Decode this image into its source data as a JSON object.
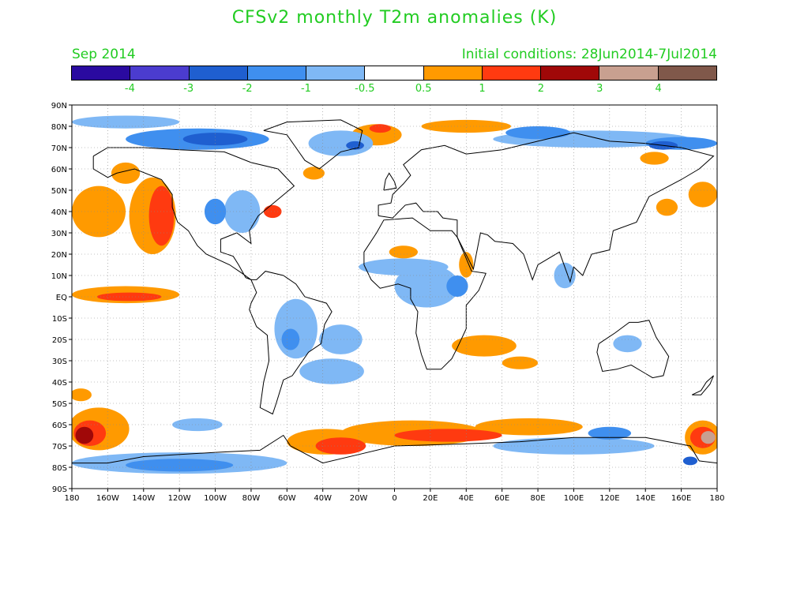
{
  "title": "CFSv2 monthly T2m anomalies (K)",
  "month_label": "Sep 2014",
  "initial_conditions": "Initial conditions: 28Jun2014-7Jul2014",
  "colorbar": {
    "colors": [
      "#2a0aa0",
      "#4b3ccf",
      "#1f5fd0",
      "#3f8fef",
      "#7fb8f5",
      "#ffffff",
      "#ff9a00",
      "#ff3a10",
      "#a00808",
      "#c8a090",
      "#80584a"
    ],
    "labels": [
      "-4",
      "-3",
      "-2",
      "-1",
      "-0.5",
      "0.5",
      "1",
      "2",
      "3",
      "4"
    ],
    "levels": [
      -4,
      -3,
      -2,
      -1,
      -0.5,
      0.5,
      1,
      2,
      3,
      4
    ]
  },
  "map": {
    "projection": "equirectangular",
    "lon_range": [
      -180,
      180
    ],
    "lat_range": [
      -90,
      90
    ],
    "grid": true,
    "lat_labels": [
      "90N",
      "80N",
      "70N",
      "60N",
      "50N",
      "40N",
      "30N",
      "20N",
      "10N",
      "EQ",
      "10S",
      "20S",
      "30S",
      "40S",
      "50S",
      "60S",
      "70S",
      "80S",
      "90S"
    ],
    "lon_labels": [
      "180",
      "160W",
      "140W",
      "120W",
      "100W",
      "80W",
      "60W",
      "40W",
      "20W",
      "0",
      "20E",
      "40E",
      "60E",
      "80E",
      "100E",
      "120E",
      "140E",
      "160E",
      "180"
    ],
    "anomaly_regions": [
      {
        "lon": -165,
        "lat": 40,
        "rlon": 15,
        "rlat": 12,
        "color": "#ff9a00"
      },
      {
        "lon": -135,
        "lat": 38,
        "rlon": 13,
        "rlat": 18,
        "color": "#ff9a00"
      },
      {
        "lon": -130,
        "lat": 38,
        "rlon": 7,
        "rlat": 14,
        "color": "#ff3a10"
      },
      {
        "lon": -150,
        "lat": 58,
        "rlon": 8,
        "rlat": 5,
        "color": "#ff9a00"
      },
      {
        "lon": -150,
        "lat": 1,
        "rlon": 30,
        "rlat": 4,
        "color": "#ff9a00"
      },
      {
        "lon": -148,
        "lat": 0,
        "rlon": 18,
        "rlat": 2,
        "color": "#ff3a10"
      },
      {
        "lon": -165,
        "lat": -62,
        "rlon": 17,
        "rlat": 10,
        "color": "#ff9a00"
      },
      {
        "lon": -170,
        "lat": -64,
        "rlon": 9,
        "rlat": 6,
        "color": "#ff3a10"
      },
      {
        "lon": -173,
        "lat": -65,
        "rlon": 5,
        "rlat": 4,
        "color": "#a00808"
      },
      {
        "lon": -175,
        "lat": -46,
        "rlon": 6,
        "rlat": 3,
        "color": "#ff9a00"
      },
      {
        "lon": -38,
        "lat": -68,
        "rlon": 22,
        "rlat": 6,
        "color": "#ff9a00"
      },
      {
        "lon": 10,
        "lat": -64,
        "rlon": 40,
        "rlat": 6,
        "color": "#ff9a00"
      },
      {
        "lon": 75,
        "lat": -61,
        "rlon": 30,
        "rlat": 4,
        "color": "#ff9a00"
      },
      {
        "lon": -30,
        "lat": -70,
        "rlon": 14,
        "rlat": 4,
        "color": "#ff3a10"
      },
      {
        "lon": 30,
        "lat": -65,
        "rlon": 30,
        "rlat": 3,
        "color": "#ff3a10"
      },
      {
        "lon": 172,
        "lat": -66,
        "rlon": 10,
        "rlat": 8,
        "color": "#ff9a00"
      },
      {
        "lon": 172,
        "lat": -66,
        "rlon": 7,
        "rlat": 5,
        "color": "#ff3a10"
      },
      {
        "lon": 175,
        "lat": -66,
        "rlon": 4,
        "rlat": 3,
        "color": "#c8a090"
      },
      {
        "lon": 172,
        "lat": 48,
        "rlon": 8,
        "rlat": 6,
        "color": "#ff9a00"
      },
      {
        "lon": 152,
        "lat": 42,
        "rlon": 6,
        "rlat": 4,
        "color": "#ff9a00"
      },
      {
        "lon": 145,
        "lat": 65,
        "rlon": 8,
        "rlat": 3,
        "color": "#ff9a00"
      },
      {
        "lon": 50,
        "lat": -23,
        "rlon": 18,
        "rlat": 5,
        "color": "#ff9a00"
      },
      {
        "lon": 70,
        "lat": -31,
        "rlon": 10,
        "rlat": 3,
        "color": "#ff9a00"
      },
      {
        "lon": -10,
        "lat": 76,
        "rlon": 14,
        "rlat": 5,
        "color": "#ff9a00"
      },
      {
        "lon": -8,
        "lat": 79,
        "rlon": 6,
        "rlat": 2,
        "color": "#ff3a10"
      },
      {
        "lon": 40,
        "lat": 80,
        "rlon": 25,
        "rlat": 3,
        "color": "#ff9a00"
      },
      {
        "lon": 5,
        "lat": 21,
        "rlon": 8,
        "rlat": 3,
        "color": "#ff9a00"
      },
      {
        "lon": 40,
        "lat": 15,
        "rlon": 4,
        "rlat": 6,
        "color": "#ff9a00"
      },
      {
        "lon": -68,
        "lat": 40,
        "rlon": 5,
        "rlat": 3,
        "color": "#ff3a10"
      },
      {
        "lon": -45,
        "lat": 58,
        "rlon": 6,
        "rlat": 3,
        "color": "#ff9a00"
      },
      {
        "lon": -85,
        "lat": 40,
        "rlon": 10,
        "rlat": 10,
        "color": "#7fb8f5"
      },
      {
        "lon": -100,
        "lat": 40,
        "rlon": 6,
        "rlat": 6,
        "color": "#3f8fef"
      },
      {
        "lon": -55,
        "lat": -15,
        "rlon": 12,
        "rlat": 14,
        "color": "#7fb8f5"
      },
      {
        "lon": -58,
        "lat": -20,
        "rlon": 5,
        "rlat": 5,
        "color": "#3f8fef"
      },
      {
        "lon": -30,
        "lat": -20,
        "rlon": 12,
        "rlat": 7,
        "color": "#7fb8f5"
      },
      {
        "lon": -35,
        "lat": -35,
        "rlon": 18,
        "rlat": 6,
        "color": "#7fb8f5"
      },
      {
        "lon": 18,
        "lat": 5,
        "rlon": 18,
        "rlat": 10,
        "color": "#7fb8f5"
      },
      {
        "lon": 35,
        "lat": 5,
        "rlon": 6,
        "rlat": 5,
        "color": "#3f8fef"
      },
      {
        "lon": 5,
        "lat": 14,
        "rlon": 25,
        "rlat": 4,
        "color": "#7fb8f5"
      },
      {
        "lon": -30,
        "lat": 72,
        "rlon": 18,
        "rlat": 6,
        "color": "#7fb8f5"
      },
      {
        "lon": -22,
        "lat": 71,
        "rlon": 5,
        "rlat": 2,
        "color": "#1f5fd0"
      },
      {
        "lon": -110,
        "lat": 74,
        "rlon": 40,
        "rlat": 5,
        "color": "#3f8fef"
      },
      {
        "lon": -100,
        "lat": 74,
        "rlon": 18,
        "rlat": 3,
        "color": "#1f5fd0"
      },
      {
        "lon": -150,
        "lat": 82,
        "rlon": 30,
        "rlat": 3,
        "color": "#7fb8f5"
      },
      {
        "lon": 110,
        "lat": 74,
        "rlon": 55,
        "rlat": 4,
        "color": "#7fb8f5"
      },
      {
        "lon": 80,
        "lat": 77,
        "rlon": 18,
        "rlat": 3,
        "color": "#3f8fef"
      },
      {
        "lon": 160,
        "lat": 72,
        "rlon": 20,
        "rlat": 3,
        "color": "#3f8fef"
      },
      {
        "lon": 150,
        "lat": 71,
        "rlon": 8,
        "rlat": 2,
        "color": "#1f5fd0"
      },
      {
        "lon": -120,
        "lat": -78,
        "rlon": 60,
        "rlat": 5,
        "color": "#7fb8f5"
      },
      {
        "lon": -120,
        "lat": -79,
        "rlon": 30,
        "rlat": 3,
        "color": "#3f8fef"
      },
      {
        "lon": 100,
        "lat": -70,
        "rlon": 45,
        "rlat": 4,
        "color": "#7fb8f5"
      },
      {
        "lon": 120,
        "lat": -64,
        "rlon": 12,
        "rlat": 3,
        "color": "#3f8fef"
      },
      {
        "lon": 165,
        "lat": -77,
        "rlon": 4,
        "rlat": 2,
        "color": "#1f5fd0"
      },
      {
        "lon": -110,
        "lat": -60,
        "rlon": 14,
        "rlat": 3,
        "color": "#7fb8f5"
      },
      {
        "lon": 130,
        "lat": -22,
        "rlon": 8,
        "rlat": 4,
        "color": "#7fb8f5"
      },
      {
        "lon": 95,
        "lat": 10,
        "rlon": 6,
        "rlat": 6,
        "color": "#7fb8f5"
      }
    ]
  }
}
